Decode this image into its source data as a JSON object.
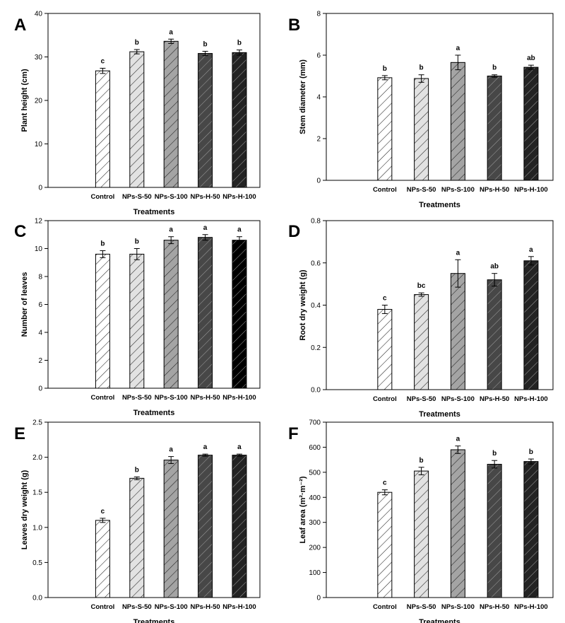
{
  "chart_data": [
    {
      "panel": "A",
      "type": "bar",
      "title": "",
      "xlabel": "Treatments",
      "ylabel": "Plant height (cm)",
      "categories": [
        "Control",
        "NPs-S-50",
        "NPs-S-100",
        "NPs-H-50",
        "NPs-H-100"
      ],
      "values": [
        26.8,
        31.2,
        33.6,
        30.8,
        31.0
      ],
      "errors": [
        0.6,
        0.5,
        0.5,
        0.5,
        0.6
      ],
      "letters": [
        "c",
        "b",
        "a",
        "b",
        "b"
      ],
      "ylim": [
        0,
        40
      ],
      "yticks": [
        "0",
        "10",
        "20",
        "30",
        "40"
      ],
      "grid": false
    },
    {
      "panel": "B",
      "type": "bar",
      "title": "",
      "xlabel": "Treatments",
      "ylabel": "Stem diameter (mm)",
      "categories": [
        "Control",
        "NPs-S-50",
        "NPs-S-100",
        "NPs-H-50",
        "NPs-H-100"
      ],
      "values": [
        4.92,
        4.88,
        5.65,
        5.0,
        5.42
      ],
      "errors": [
        0.1,
        0.18,
        0.35,
        0.06,
        0.1
      ],
      "letters": [
        "b",
        "b",
        "a",
        "b",
        "ab"
      ],
      "ylim": [
        0,
        8
      ],
      "yticks": [
        "0",
        "2",
        "4",
        "6",
        "8"
      ],
      "grid": false
    },
    {
      "panel": "C",
      "type": "bar",
      "title": "",
      "xlabel": "Treatments",
      "ylabel": "Number of leaves",
      "categories": [
        "Control",
        "NPs-S-50",
        "NPs-S-100",
        "NPs-H-50",
        "NPs-H-100"
      ],
      "values": [
        9.6,
        9.6,
        10.6,
        10.8,
        10.6
      ],
      "errors": [
        0.25,
        0.4,
        0.25,
        0.2,
        0.25
      ],
      "letters": [
        "b",
        "b",
        "a",
        "a",
        "a"
      ],
      "ylim": [
        0,
        12
      ],
      "yticks": [
        "0",
        "2",
        "4",
        "6",
        "8",
        "10",
        "12"
      ],
      "grid": false
    },
    {
      "panel": "D",
      "type": "bar",
      "title": "",
      "xlabel": "Treatments",
      "ylabel": "Root dry weight (g)",
      "categories": [
        "Control",
        "NPs-S-50",
        "NPs-S-100",
        "NPs-H-50",
        "NPs-H-100"
      ],
      "values": [
        0.38,
        0.45,
        0.55,
        0.52,
        0.61
      ],
      "errors": [
        0.02,
        0.008,
        0.065,
        0.03,
        0.02
      ],
      "letters": [
        "c",
        "bc",
        "a",
        "ab",
        "a"
      ],
      "ylim": [
        0,
        0.8
      ],
      "yticks": [
        "0.0",
        "0.2",
        "0.4",
        "0.6",
        "0.8"
      ],
      "grid": false
    },
    {
      "panel": "E",
      "type": "bar",
      "title": "",
      "xlabel": "Treatments",
      "ylabel": "Leaves dry weight (g)",
      "categories": [
        "Control",
        "NPs-S-50",
        "NPs-S-100",
        "NPs-H-50",
        "NPs-H-100"
      ],
      "values": [
        1.1,
        1.7,
        1.96,
        2.03,
        2.03
      ],
      "errors": [
        0.03,
        0.02,
        0.05,
        0.015,
        0.015
      ],
      "letters": [
        "c",
        "b",
        "a",
        "a",
        "a"
      ],
      "ylim": [
        0,
        2.5
      ],
      "yticks": [
        "0.0",
        "0.5",
        "1.0",
        "1.5",
        "2.0",
        "2.5"
      ],
      "grid": false
    },
    {
      "panel": "F",
      "type": "bar",
      "title": "",
      "xlabel": "Treatments",
      "ylabel": "Leaf area (m²·m⁻²)",
      "categories": [
        "Control",
        "NPs-S-50",
        "NPs-S-100",
        "NPs-H-50",
        "NPs-H-100"
      ],
      "values": [
        420,
        505,
        590,
        532,
        543
      ],
      "errors": [
        10,
        15,
        15,
        15,
        10
      ],
      "letters": [
        "c",
        "b",
        "a",
        "b",
        "b"
      ],
      "ylim": [
        0,
        700
      ],
      "yticks": [
        "0",
        "100",
        "200",
        "300",
        "400",
        "500",
        "600",
        "700"
      ],
      "grid": false
    }
  ],
  "colors": {
    "axis": "#000000",
    "bar_fills": [
      "#ffffff",
      "#e2e2e2",
      "#a4a4a4",
      "#474747",
      "#232323"
    ],
    "bar_fills_C": [
      "#ffffff",
      "#e2e2e2",
      "#a4a4a4",
      "#474747",
      "#000000"
    ],
    "hatch_light": "#222222",
    "hatch_dark": "#9a9a9a"
  }
}
